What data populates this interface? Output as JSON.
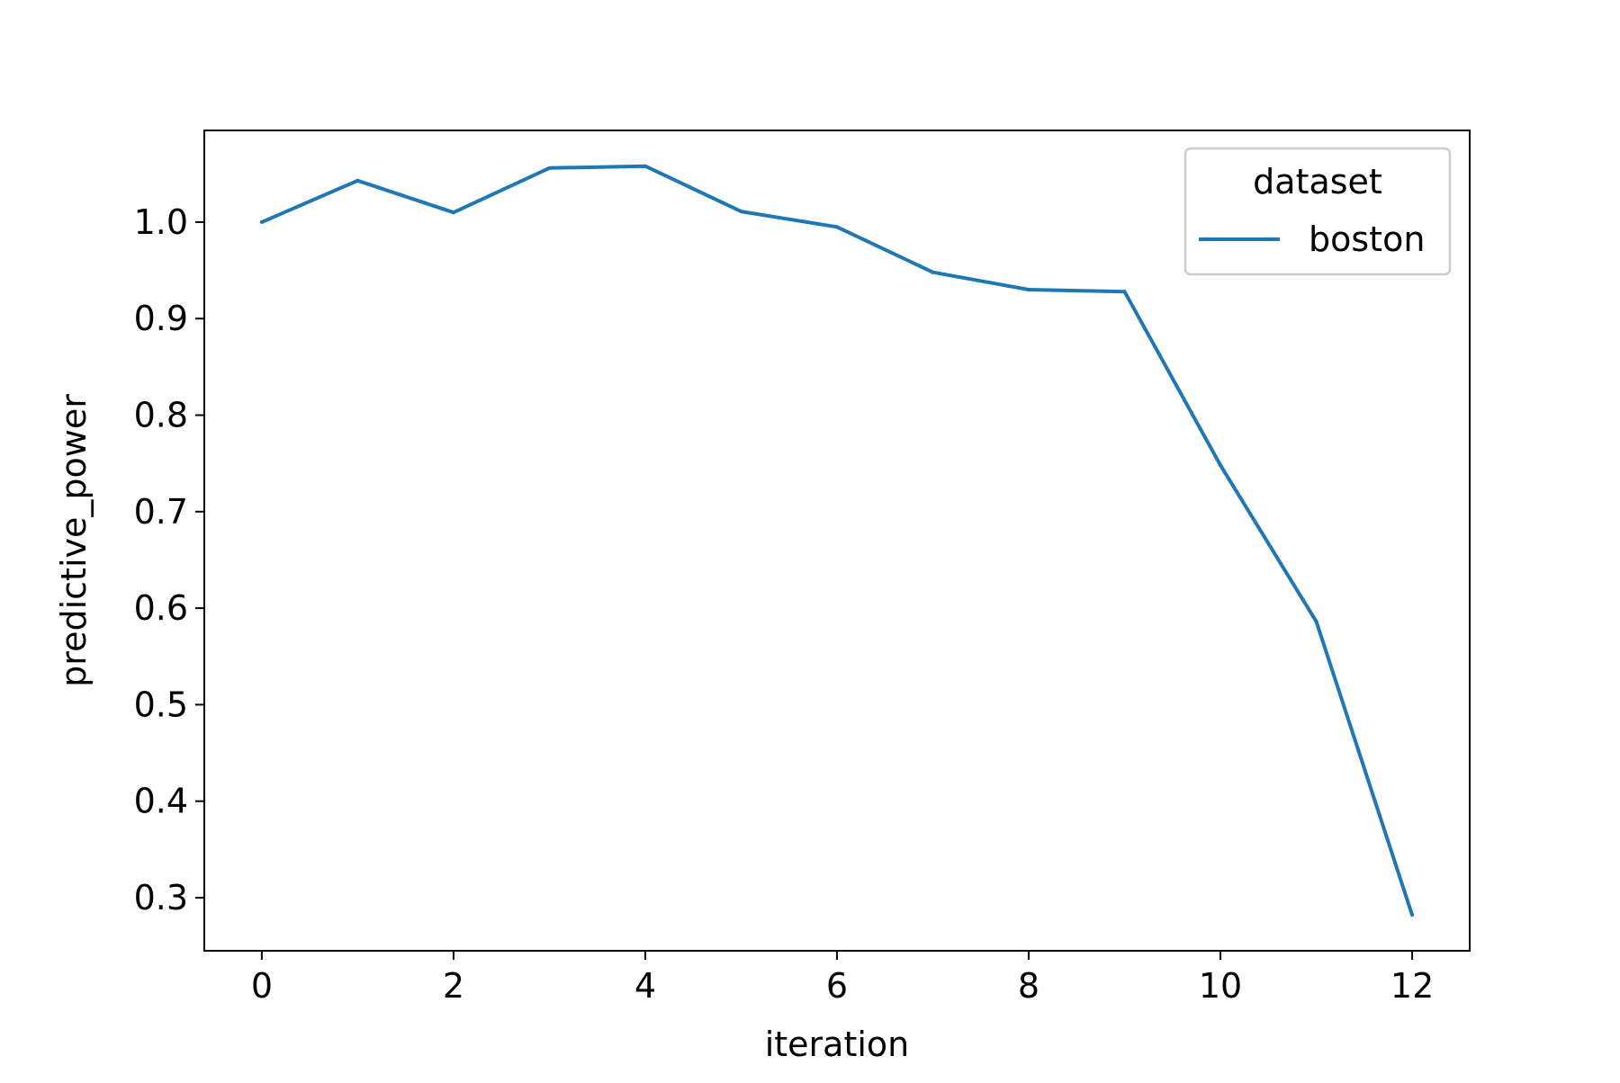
{
  "chart_data": {
    "type": "line",
    "title": "",
    "xlabel": "iteration",
    "ylabel": "predictive_power",
    "xlim": [
      -0.6,
      12.6
    ],
    "ylim": [
      0.245,
      1.095
    ],
    "xticks": [
      0,
      2,
      4,
      6,
      8,
      10,
      12
    ],
    "yticks": [
      0.3,
      0.4,
      0.5,
      0.6,
      0.7,
      0.8,
      0.9,
      1.0
    ],
    "xtick_labels": [
      "0",
      "2",
      "4",
      "6",
      "8",
      "10",
      "12"
    ],
    "ytick_labels": [
      "0.3",
      "0.4",
      "0.5",
      "0.6",
      "0.7",
      "0.8",
      "0.9",
      "1.0"
    ],
    "grid": false,
    "legend": {
      "title": "dataset",
      "placement": "upper-right"
    },
    "series": [
      {
        "name": "boston",
        "color": "#1f77b4",
        "x": [
          0,
          1,
          2,
          3,
          4,
          5,
          6,
          7,
          8,
          9,
          10,
          11,
          12
        ],
        "y": [
          1.0,
          1.043,
          1.01,
          1.056,
          1.058,
          1.011,
          0.995,
          0.948,
          0.93,
          0.928,
          0.748,
          0.586,
          0.282
        ]
      }
    ]
  }
}
